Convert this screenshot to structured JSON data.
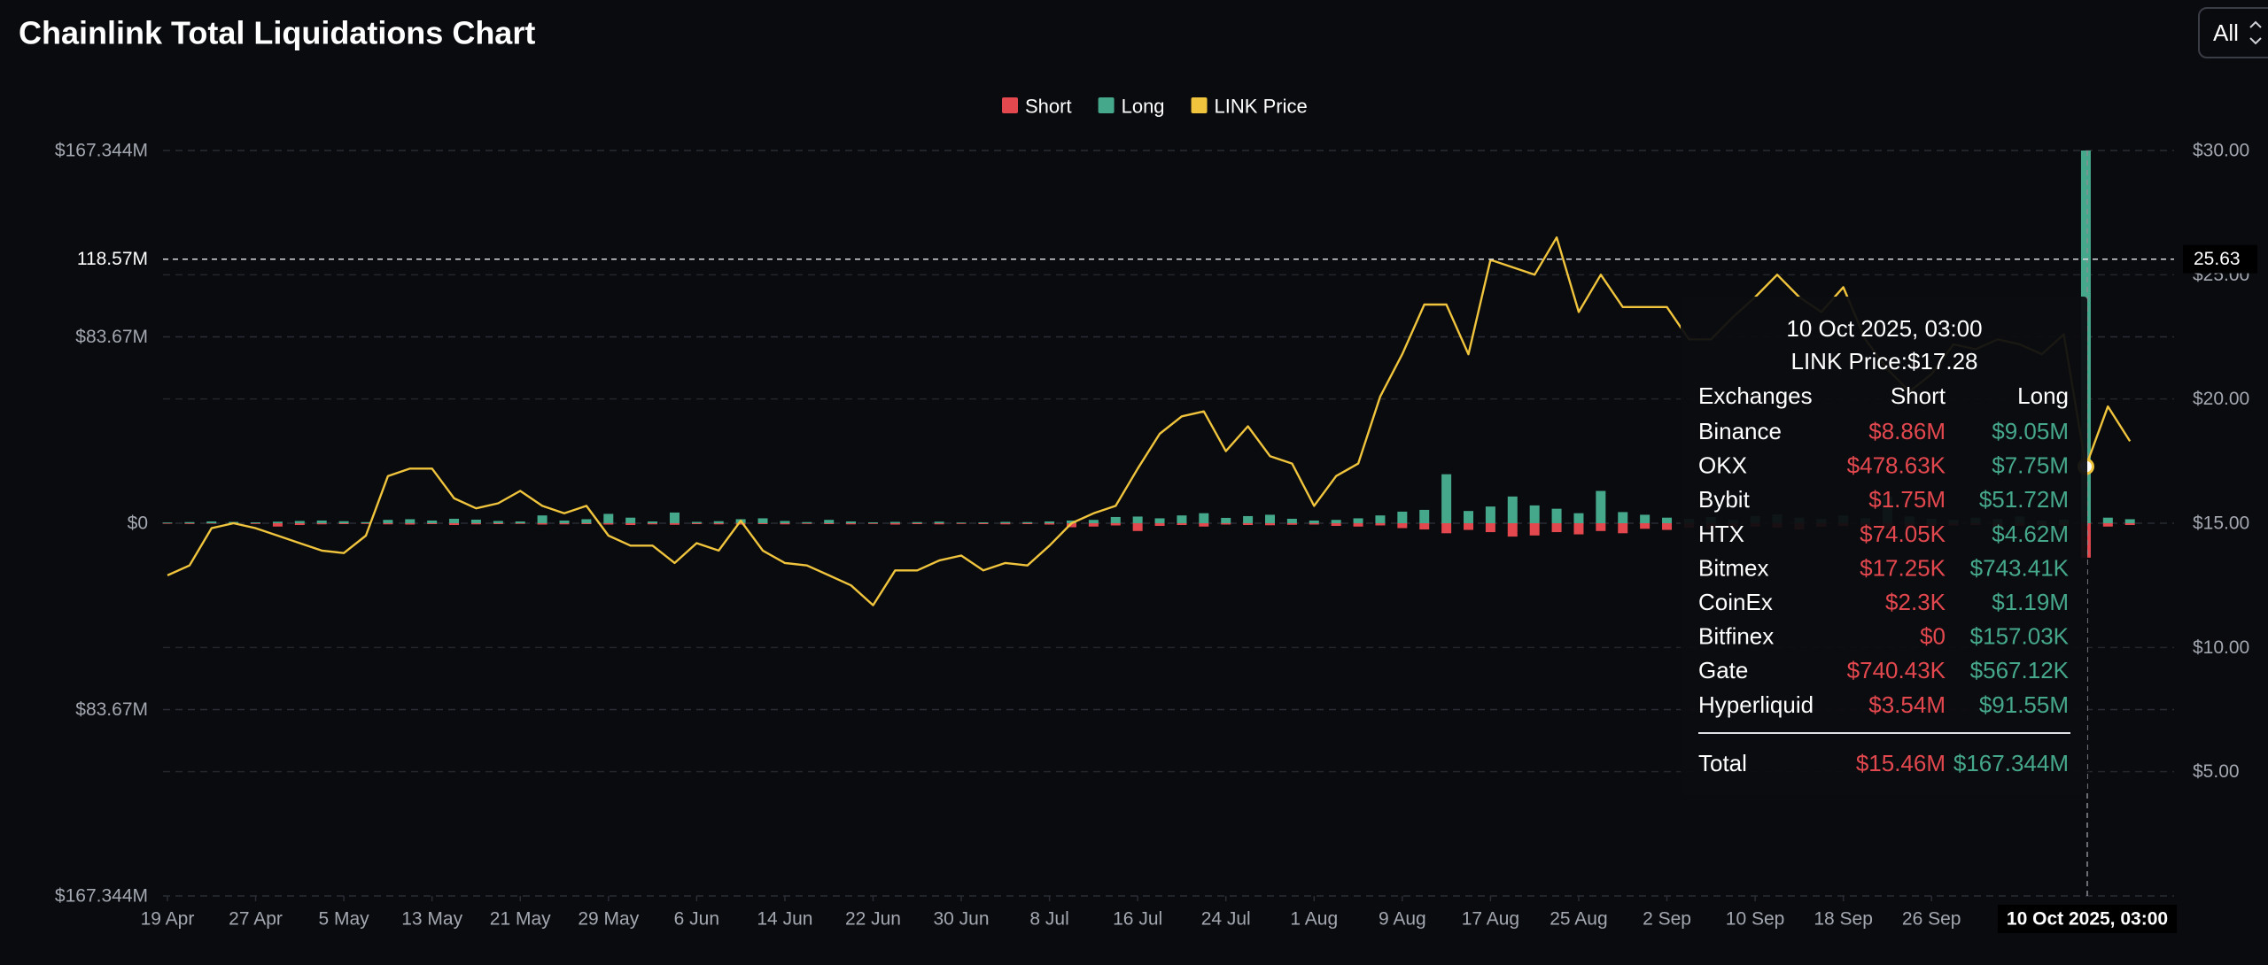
{
  "chart_data": {
    "type": "bar",
    "title": "Chainlink Total Liquidations Chart",
    "range_selector": "All",
    "x": [
      0,
      2,
      4,
      6,
      8,
      10,
      12,
      14,
      16,
      18,
      20,
      22,
      24,
      26,
      28,
      30,
      32,
      34,
      36,
      38,
      40,
      42,
      44,
      46,
      48,
      50,
      52,
      54,
      56,
      58,
      60,
      62,
      64,
      66,
      68,
      70,
      72,
      74,
      76,
      78,
      80,
      82,
      84,
      86,
      88,
      90,
      92,
      94,
      96,
      98,
      100,
      102,
      104,
      106,
      108,
      110,
      112,
      114,
      116,
      118,
      120,
      122,
      124,
      126,
      128,
      130,
      132,
      134,
      136,
      138,
      140,
      142,
      144,
      146,
      148,
      150,
      152,
      154,
      156,
      158,
      160,
      162,
      164,
      166,
      168,
      170,
      172,
      174,
      176,
      178
    ],
    "xlim": [
      -0.4,
      182
    ],
    "xticks": [
      {
        "value": 0,
        "label": "19 Apr"
      },
      {
        "value": 8,
        "label": "27 Apr"
      },
      {
        "value": 16,
        "label": "5 May"
      },
      {
        "value": 24,
        "label": "13 May"
      },
      {
        "value": 32,
        "label": "21 May"
      },
      {
        "value": 40,
        "label": "29 May"
      },
      {
        "value": 48,
        "label": "6 Jun"
      },
      {
        "value": 56,
        "label": "14 Jun"
      },
      {
        "value": 64,
        "label": "22 Jun"
      },
      {
        "value": 72,
        "label": "30 Jun"
      },
      {
        "value": 80,
        "label": "8 Jul"
      },
      {
        "value": 88,
        "label": "16 Jul"
      },
      {
        "value": 96,
        "label": "24 Jul"
      },
      {
        "value": 104,
        "label": "1 Aug"
      },
      {
        "value": 112,
        "label": "9 Aug"
      },
      {
        "value": 120,
        "label": "17 Aug"
      },
      {
        "value": 128,
        "label": "25 Aug"
      },
      {
        "value": 136,
        "label": "2 Sep"
      },
      {
        "value": 144,
        "label": "10 Sep"
      },
      {
        "value": 152,
        "label": "18 Sep"
      },
      {
        "value": 160,
        "label": "26 Sep"
      }
    ],
    "ylim": [
      -167.344,
      167.344
    ],
    "yticks": [
      {
        "value": 167.344,
        "label": "$167.344M"
      },
      {
        "value": 83.67,
        "label": "$83.67M"
      },
      {
        "value": 0,
        "label": "$0"
      },
      {
        "value": -83.67,
        "label": "$83.67M"
      },
      {
        "value": -167.344,
        "label": "$167.344M"
      }
    ],
    "y2lim": [
      0,
      30
    ],
    "y2ticks": [
      {
        "value": 30,
        "label": "$30.00"
      },
      {
        "value": 25,
        "label": "$25.00"
      },
      {
        "value": 20,
        "label": "$20.00"
      },
      {
        "value": 15,
        "label": "$15.00"
      },
      {
        "value": 10,
        "label": "$10.00"
      },
      {
        "value": 5,
        "label": "$5.00"
      }
    ],
    "grid": true,
    "legend": "top",
    "series": [
      {
        "name": "Short",
        "type": "bar",
        "color": "#e2484e",
        "values": [
          -0.2,
          -0.3,
          -0.2,
          -0.4,
          -0.3,
          -1.5,
          -0.8,
          -0.5,
          -0.4,
          -0.3,
          -0.5,
          -0.6,
          -0.4,
          -0.8,
          -0.5,
          -0.4,
          -0.3,
          -0.6,
          -0.5,
          -0.4,
          -0.6,
          -0.8,
          -0.5,
          -0.7,
          -0.4,
          -0.5,
          -0.6,
          -0.4,
          -0.5,
          -0.3,
          -0.4,
          -0.5,
          -0.3,
          -0.6,
          -0.4,
          -0.5,
          -0.3,
          -0.4,
          -0.5,
          -0.4,
          -0.6,
          -1.8,
          -1.5,
          -1.0,
          -3.5,
          -1.2,
          -0.8,
          -1.5,
          -0.6,
          -0.8,
          -0.9,
          -0.7,
          -0.6,
          -1.2,
          -1.5,
          -1.0,
          -2.2,
          -2.8,
          -4.5,
          -3.0,
          -4.0,
          -6.0,
          -5.5,
          -4.0,
          -5.0,
          -3.5,
          -4.5,
          -2.5,
          -3.0,
          -2.0,
          -2.5,
          -1.8,
          -1.5,
          -2.0,
          -2.8,
          -1.6,
          -1.2,
          -1.0,
          -2.5,
          -1.5,
          -1.2,
          -1.0,
          -0.8,
          -1.5,
          -1.2,
          -0.9,
          -1.0,
          -15.46,
          -1.5,
          -0.8
        ]
      },
      {
        "name": "Long",
        "type": "bar",
        "color": "#46a88b",
        "values": [
          0.3,
          0.5,
          0.8,
          0.6,
          0.4,
          0.7,
          1.0,
          1.2,
          0.9,
          0.5,
          1.5,
          1.8,
          1.2,
          2.0,
          1.6,
          1.0,
          0.8,
          3.5,
          1.2,
          1.8,
          4.2,
          2.5,
          0.8,
          4.8,
          0.6,
          0.9,
          1.8,
          2.2,
          1.0,
          0.5,
          1.5,
          0.8,
          0.4,
          0.6,
          0.5,
          0.7,
          0.3,
          0.4,
          0.6,
          0.5,
          0.8,
          1.2,
          1.5,
          2.8,
          3.0,
          2.2,
          3.5,
          4.5,
          2.4,
          3.2,
          3.8,
          2.0,
          1.2,
          1.5,
          2.2,
          3.5,
          5.2,
          6.0,
          22.0,
          5.5,
          7.5,
          12.0,
          8.0,
          6.5,
          4.5,
          14.5,
          5.0,
          3.8,
          2.5,
          2.0,
          2.8,
          1.5,
          3.2,
          4.0,
          2.5,
          1.8,
          3.5,
          2.2,
          12.0,
          3.0,
          2.0,
          1.5,
          2.5,
          1.8,
          3.0,
          1.2,
          1.6,
          167.344,
          2.5,
          1.8
        ]
      },
      {
        "name": "LINK Price",
        "type": "line",
        "axis": "y2",
        "color": "#f0c43c",
        "values": [
          12.9,
          13.3,
          14.8,
          15.0,
          14.8,
          14.5,
          14.2,
          13.9,
          13.8,
          14.5,
          16.9,
          17.2,
          17.2,
          16.0,
          15.6,
          15.8,
          16.3,
          15.7,
          15.4,
          15.7,
          14.5,
          14.1,
          14.1,
          13.4,
          14.2,
          13.9,
          15.1,
          13.9,
          13.4,
          13.3,
          12.9,
          12.5,
          11.7,
          13.1,
          13.1,
          13.5,
          13.7,
          13.1,
          13.4,
          13.3,
          14.1,
          15.0,
          15.4,
          15.7,
          17.2,
          18.6,
          19.3,
          19.5,
          17.9,
          18.9,
          17.7,
          17.4,
          15.7,
          16.9,
          17.4,
          20.1,
          21.8,
          23.8,
          23.8,
          21.8,
          25.6,
          25.3,
          25.0,
          26.5,
          23.5,
          25.0,
          23.7,
          23.7,
          23.7,
          22.4,
          22.4,
          23.3,
          24.1,
          25.0,
          24.1,
          23.5,
          24.5,
          22.4,
          21.2,
          20.3,
          21.0,
          22.2,
          22.0,
          22.4,
          22.2,
          21.8,
          22.6,
          17.28,
          19.7,
          18.3
        ]
      }
    ],
    "crosshair": {
      "x": 174.125,
      "x_label": "10 Oct 2025, 03:00",
      "y": {
        "value": 118.57,
        "label": "118.57M"
      },
      "y2": 25.63,
      "point": 87
    },
    "tooltip": {
      "price_label": "LINK Price:$17.28",
      "headers": [
        "Exchanges",
        "Short",
        "Long"
      ],
      "rows": [
        [
          "Binance",
          "$8.86M",
          "$9.05M"
        ],
        [
          "OKX",
          "$478.63K",
          "$7.75M"
        ],
        [
          "Bybit",
          "$1.75M",
          "$51.72M"
        ],
        [
          "HTX",
          "$74.05K",
          "$4.62M"
        ],
        [
          "Bitmex",
          "$17.25K",
          "$743.41K"
        ],
        [
          "CoinEx",
          "$2.3K",
          "$1.19M"
        ],
        [
          "Bitfinex",
          "$0",
          "$157.03K"
        ],
        [
          "Gate",
          "$740.43K",
          "$567.12K"
        ],
        [
          "Hyperliquid",
          "$3.54M",
          "$91.55M"
        ]
      ],
      "total": [
        "Total",
        "$15.46M",
        "$167.344M"
      ]
    }
  }
}
